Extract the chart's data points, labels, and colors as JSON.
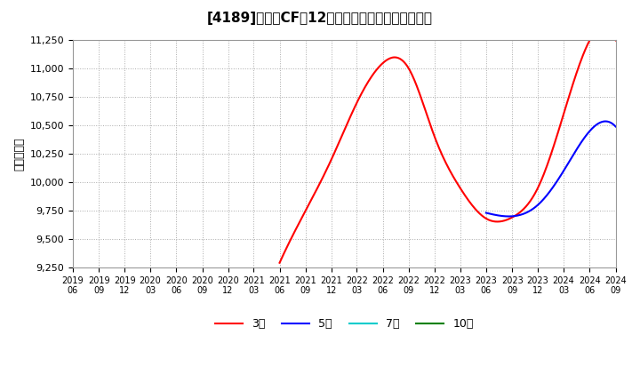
{
  "title": "[4189]　営業CFの12か月移動合計の平均値の推移",
  "ylabel": "（百万円）",
  "background_color": "#ffffff",
  "plot_bg_color": "#ffffff",
  "grid_color": "#aaaaaa",
  "ylim": [
    9250,
    11250
  ],
  "yticks": [
    9250,
    9500,
    9750,
    10000,
    10250,
    10500,
    10750,
    11000,
    11250
  ],
  "series": {
    "3year": {
      "color": "#ff0000",
      "label": "3年",
      "points": [
        [
          "2021/06",
          9290
        ],
        [
          "2021/09",
          9750
        ],
        [
          "2021/12",
          10200
        ],
        [
          "2022/03",
          10700
        ],
        [
          "2022/06",
          11050
        ],
        [
          "2022/09",
          11000
        ],
        [
          "2022/12",
          10400
        ],
        [
          "2023/03",
          9950
        ],
        [
          "2023/06",
          9680
        ],
        [
          "2023/09",
          9690
        ],
        [
          "2023/12",
          9950
        ],
        [
          "2024/03",
          10600
        ],
        [
          "2024/06",
          11250
        ],
        [
          "2024/09",
          11250
        ]
      ]
    },
    "5year": {
      "color": "#0000ff",
      "label": "5年",
      "points": [
        [
          "2023/06",
          9730
        ],
        [
          "2023/09",
          9700
        ],
        [
          "2023/12",
          9800
        ],
        [
          "2024/03",
          10100
        ],
        [
          "2024/06",
          10450
        ],
        [
          "2024/09",
          10490
        ]
      ]
    },
    "7year": {
      "color": "#00cccc",
      "label": "7年",
      "points": []
    },
    "10year": {
      "color": "#008000",
      "label": "10年",
      "points": []
    }
  },
  "legend_entries": [
    "3年",
    "5年",
    "7年",
    "10年"
  ],
  "legend_colors": [
    "#ff0000",
    "#0000ff",
    "#00cccc",
    "#008000"
  ],
  "xtick_dates": [
    "2019/06",
    "2019/09",
    "2019/12",
    "2020/03",
    "2020/06",
    "2020/09",
    "2020/12",
    "2021/03",
    "2021/06",
    "2021/09",
    "2021/12",
    "2022/03",
    "2022/06",
    "2022/09",
    "2022/12",
    "2023/03",
    "2023/06",
    "2023/09",
    "2023/12",
    "2024/03",
    "2024/06",
    "2024/09"
  ],
  "xmin": "2019/06",
  "xmax": "2024/09"
}
